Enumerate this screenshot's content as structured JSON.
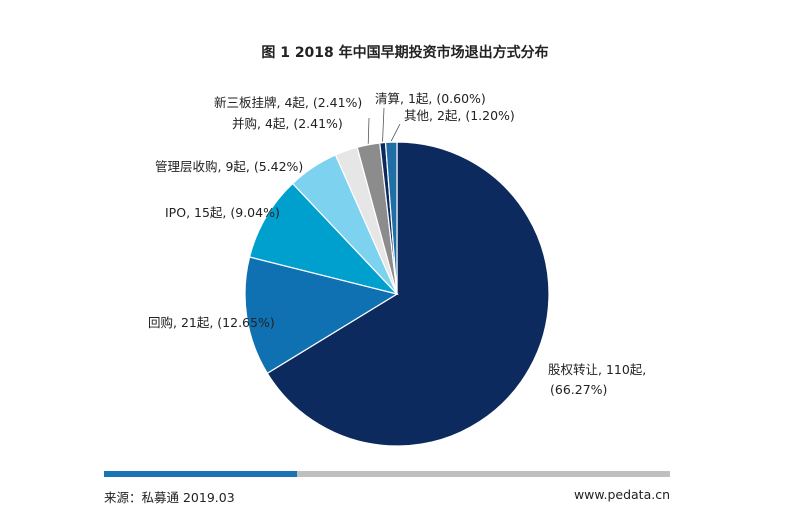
{
  "chart_data": {
    "type": "pie",
    "title": "图 1 2018 年中国早期投资市场退出方式分布",
    "slices": [
      {
        "label": "股权转让, 110起,",
        "label2": "(66.27%)",
        "count": 110,
        "percent": 66.27,
        "color": "#0d2a5e"
      },
      {
        "label": "回购, 21起, (12.65%)",
        "count": 21,
        "percent": 12.65,
        "color": "#0f71b1"
      },
      {
        "label": "IPO, 15起, (9.04%)",
        "count": 15,
        "percent": 9.04,
        "color": "#00a0ce"
      },
      {
        "label": "管理层收购, 9起, (5.42%)",
        "count": 9,
        "percent": 5.42,
        "color": "#7dd3ef"
      },
      {
        "label": "并购, 4起, (2.41%)",
        "count": 4,
        "percent": 2.41,
        "color": "#e6e6e6"
      },
      {
        "label": "新三板挂牌, 4起, (2.41%)",
        "count": 4,
        "percent": 2.41,
        "color": "#8c8c8c"
      },
      {
        "label": "清算, 1起, (0.60%)",
        "count": 1,
        "percent": 0.6,
        "color": "#0d2a5e"
      },
      {
        "label": "其他, 2起, (1.20%)",
        "count": 2,
        "percent": 1.2,
        "color": "#1f6ea6"
      }
    ]
  },
  "footer": {
    "source": "来源：私募通 2019.03",
    "site": "www.pedata.cn",
    "accent_color": "#1a73b5",
    "rule_color": "#bfbfbf"
  }
}
